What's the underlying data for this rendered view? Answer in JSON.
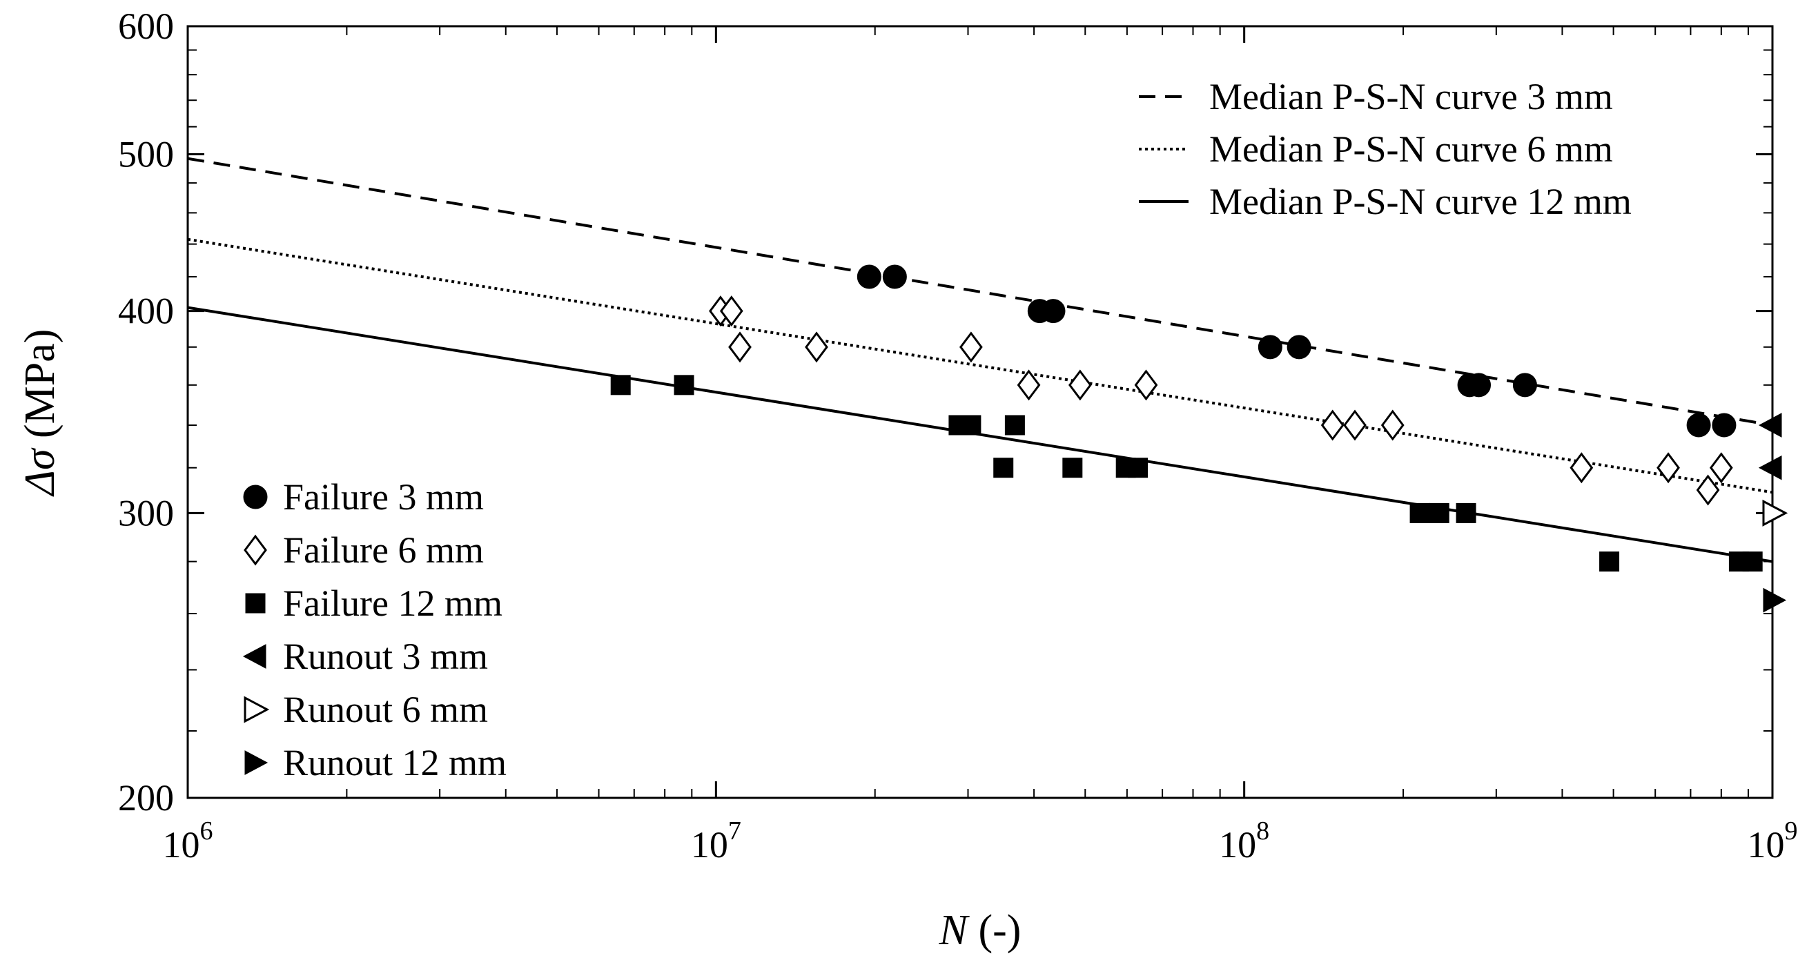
{
  "chart_data": {
    "type": "scatter",
    "xlabel_italic": "N",
    "xlabel_rest": " (-)",
    "ylabel_symbol": "Δσ",
    "ylabel_rest": " (MPa)",
    "xscale": "log",
    "yscale": "log",
    "xlim": [
      1000000,
      1000000000
    ],
    "ylim": [
      200,
      600
    ],
    "x_ticks": [
      {
        "value": 1000000,
        "base": "10",
        "exp": "6"
      },
      {
        "value": 10000000,
        "base": "10",
        "exp": "7"
      },
      {
        "value": 100000000,
        "base": "10",
        "exp": "8"
      },
      {
        "value": 1000000000,
        "base": "10",
        "exp": "9"
      }
    ],
    "y_ticks": [
      {
        "value": 200,
        "label": "200"
      },
      {
        "value": 300,
        "label": "300"
      },
      {
        "value": 400,
        "label": "400"
      },
      {
        "value": 500,
        "label": "500"
      },
      {
        "value": 600,
        "label": "600"
      }
    ],
    "lines": [
      {
        "name": "Median P-S-N curve 3 mm",
        "style": "dashed",
        "x": [
          1000000,
          1000000000
        ],
        "y": [
          497,
          340
        ]
      },
      {
        "name": "Median P-S-N curve 6 mm",
        "style": "dotted",
        "x": [
          1000000,
          1000000000
        ],
        "y": [
          443,
          309
        ]
      },
      {
        "name": "Median P-S-N curve 12 mm",
        "style": "solid",
        "x": [
          1000000,
          1000000000
        ],
        "y": [
          402,
          280
        ]
      }
    ],
    "series": [
      {
        "name": "Failure 3 mm",
        "marker": "circle-filled",
        "points": [
          [
            19500000,
            420
          ],
          [
            21800000,
            420
          ],
          [
            41000000,
            400
          ],
          [
            43500000,
            400
          ],
          [
            112000000,
            380
          ],
          [
            127000000,
            380
          ],
          [
            267000000,
            360
          ],
          [
            278000000,
            360
          ],
          [
            340000000,
            360
          ],
          [
            725000000,
            340
          ],
          [
            810000000,
            340
          ]
        ]
      },
      {
        "name": "Failure 6 mm",
        "marker": "diamond-open",
        "points": [
          [
            10200000,
            400
          ],
          [
            10700000,
            400
          ],
          [
            11100000,
            380
          ],
          [
            15500000,
            380
          ],
          [
            30400000,
            380
          ],
          [
            39100000,
            360
          ],
          [
            48900000,
            360
          ],
          [
            65200000,
            360
          ],
          [
            147000000,
            340
          ],
          [
            162000000,
            340
          ],
          [
            191000000,
            340
          ],
          [
            435000000,
            320
          ],
          [
            635000000,
            320
          ],
          [
            755000000,
            310
          ],
          [
            800000000,
            320
          ]
        ]
      },
      {
        "name": "Failure 12 mm",
        "marker": "square-filled",
        "points": [
          [
            6600000,
            360
          ],
          [
            8700000,
            360
          ],
          [
            28800000,
            340
          ],
          [
            30400000,
            340
          ],
          [
            36800000,
            340
          ],
          [
            35000000,
            320
          ],
          [
            47300000,
            320
          ],
          [
            59700000,
            320
          ],
          [
            62900000,
            320
          ],
          [
            215000000,
            300
          ],
          [
            234000000,
            300
          ],
          [
            263000000,
            300
          ],
          [
            491000000,
            280
          ],
          [
            864000000,
            280
          ],
          [
            917000000,
            280
          ]
        ]
      },
      {
        "name": "Runout 3 mm",
        "marker": "triangle-left-filled",
        "points": [
          [
            1000000000,
            340
          ],
          [
            1000000000,
            320
          ]
        ]
      },
      {
        "name": "Runout 6 mm",
        "marker": "triangle-right-open",
        "points": [
          [
            1000000000,
            300
          ]
        ]
      },
      {
        "name": "Runout 12 mm",
        "marker": "triangle-right-filled",
        "points": [
          [
            1000000000,
            265
          ]
        ]
      }
    ],
    "legend_lines_position": "top-right",
    "legend_markers_position": "bottom-left",
    "grid": false
  }
}
